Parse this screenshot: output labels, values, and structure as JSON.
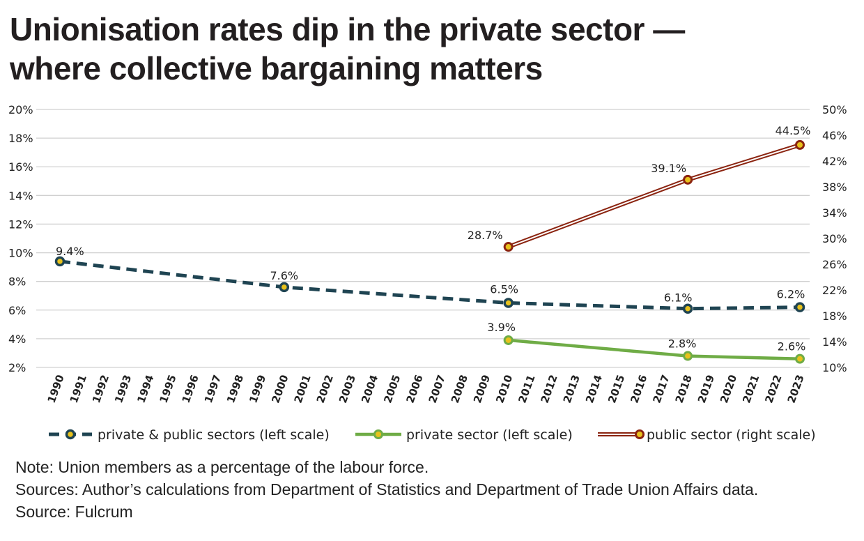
{
  "title_lines": [
    "Unionisation rates dip in the private sector —",
    "where collective bargaining matters"
  ],
  "notes": {
    "note": "Note: Union members as a percentage of the labour force.",
    "sources": "Sources: Author’s calculations from Department of Statistics and Department of Trade Union Affairs data.",
    "credit": "Source: Fulcrum"
  },
  "colors": {
    "grid": "#d0d0d0",
    "axis_text": "#222222",
    "total": "#1f4452",
    "private": "#6fac46",
    "public": "#8b2410",
    "marker_fill": "#e8c21c"
  },
  "chart_data": {
    "type": "line",
    "title": "Unionisation rates dip in the private sector — where collective bargaining matters",
    "categories": [
      "1990",
      "1991",
      "1992",
      "1993",
      "1994",
      "1995",
      "1996",
      "1997",
      "1998",
      "1999",
      "2000",
      "2001",
      "2002",
      "2003",
      "2004",
      "2005",
      "2006",
      "2007",
      "2008",
      "2009",
      "2010",
      "2011",
      "2012",
      "2013",
      "2014",
      "2015",
      "2016",
      "2017",
      "2018",
      "2019",
      "2020",
      "2021",
      "2022",
      "2023"
    ],
    "left_axis": {
      "min": 2,
      "max": 20,
      "ticks": [
        2,
        4,
        6,
        8,
        10,
        12,
        14,
        16,
        18,
        20
      ],
      "tick_labels": [
        "2%",
        "4%",
        "6%",
        "8%",
        "10%",
        "12%",
        "14%",
        "16%",
        "18%",
        "20%"
      ]
    },
    "right_axis": {
      "min": 10,
      "max": 50,
      "ticks": [
        10,
        14,
        18,
        22,
        26,
        30,
        34,
        38,
        42,
        46,
        50
      ],
      "tick_labels": [
        "10%",
        "14%",
        "18%",
        "22%",
        "26%",
        "30%",
        "34%",
        "38%",
        "42%",
        "46%",
        "50%"
      ]
    },
    "grid": true,
    "legend_position": "bottom",
    "series": [
      {
        "name": "private & public sectors (left scale)",
        "axis": "left",
        "style": "dashed",
        "points": [
          {
            "x": "1990",
            "y": 9.4
          },
          {
            "x": "2000",
            "y": 7.6
          },
          {
            "x": "2010",
            "y": 6.5
          },
          {
            "x": "2018",
            "y": 6.1
          },
          {
            "x": "2023",
            "y": 6.2
          }
        ],
        "labels": [
          "9.4%",
          "7.6%",
          "6.5%",
          "6.1%",
          "6.2%"
        ]
      },
      {
        "name": "private sector (left scale)",
        "axis": "left",
        "style": "solid",
        "points": [
          {
            "x": "2010",
            "y": 3.9
          },
          {
            "x": "2018",
            "y": 2.8
          },
          {
            "x": "2023",
            "y": 2.6
          }
        ],
        "labels": [
          "3.9%",
          "2.8%",
          "2.6%"
        ]
      },
      {
        "name": "public sector (right scale)",
        "axis": "right",
        "style": "double",
        "points": [
          {
            "x": "2010",
            "y": 28.7
          },
          {
            "x": "2018",
            "y": 39.1
          },
          {
            "x": "2023",
            "y": 44.5
          }
        ],
        "labels": [
          "28.7%",
          "39.1%",
          "44.5%"
        ]
      }
    ]
  }
}
